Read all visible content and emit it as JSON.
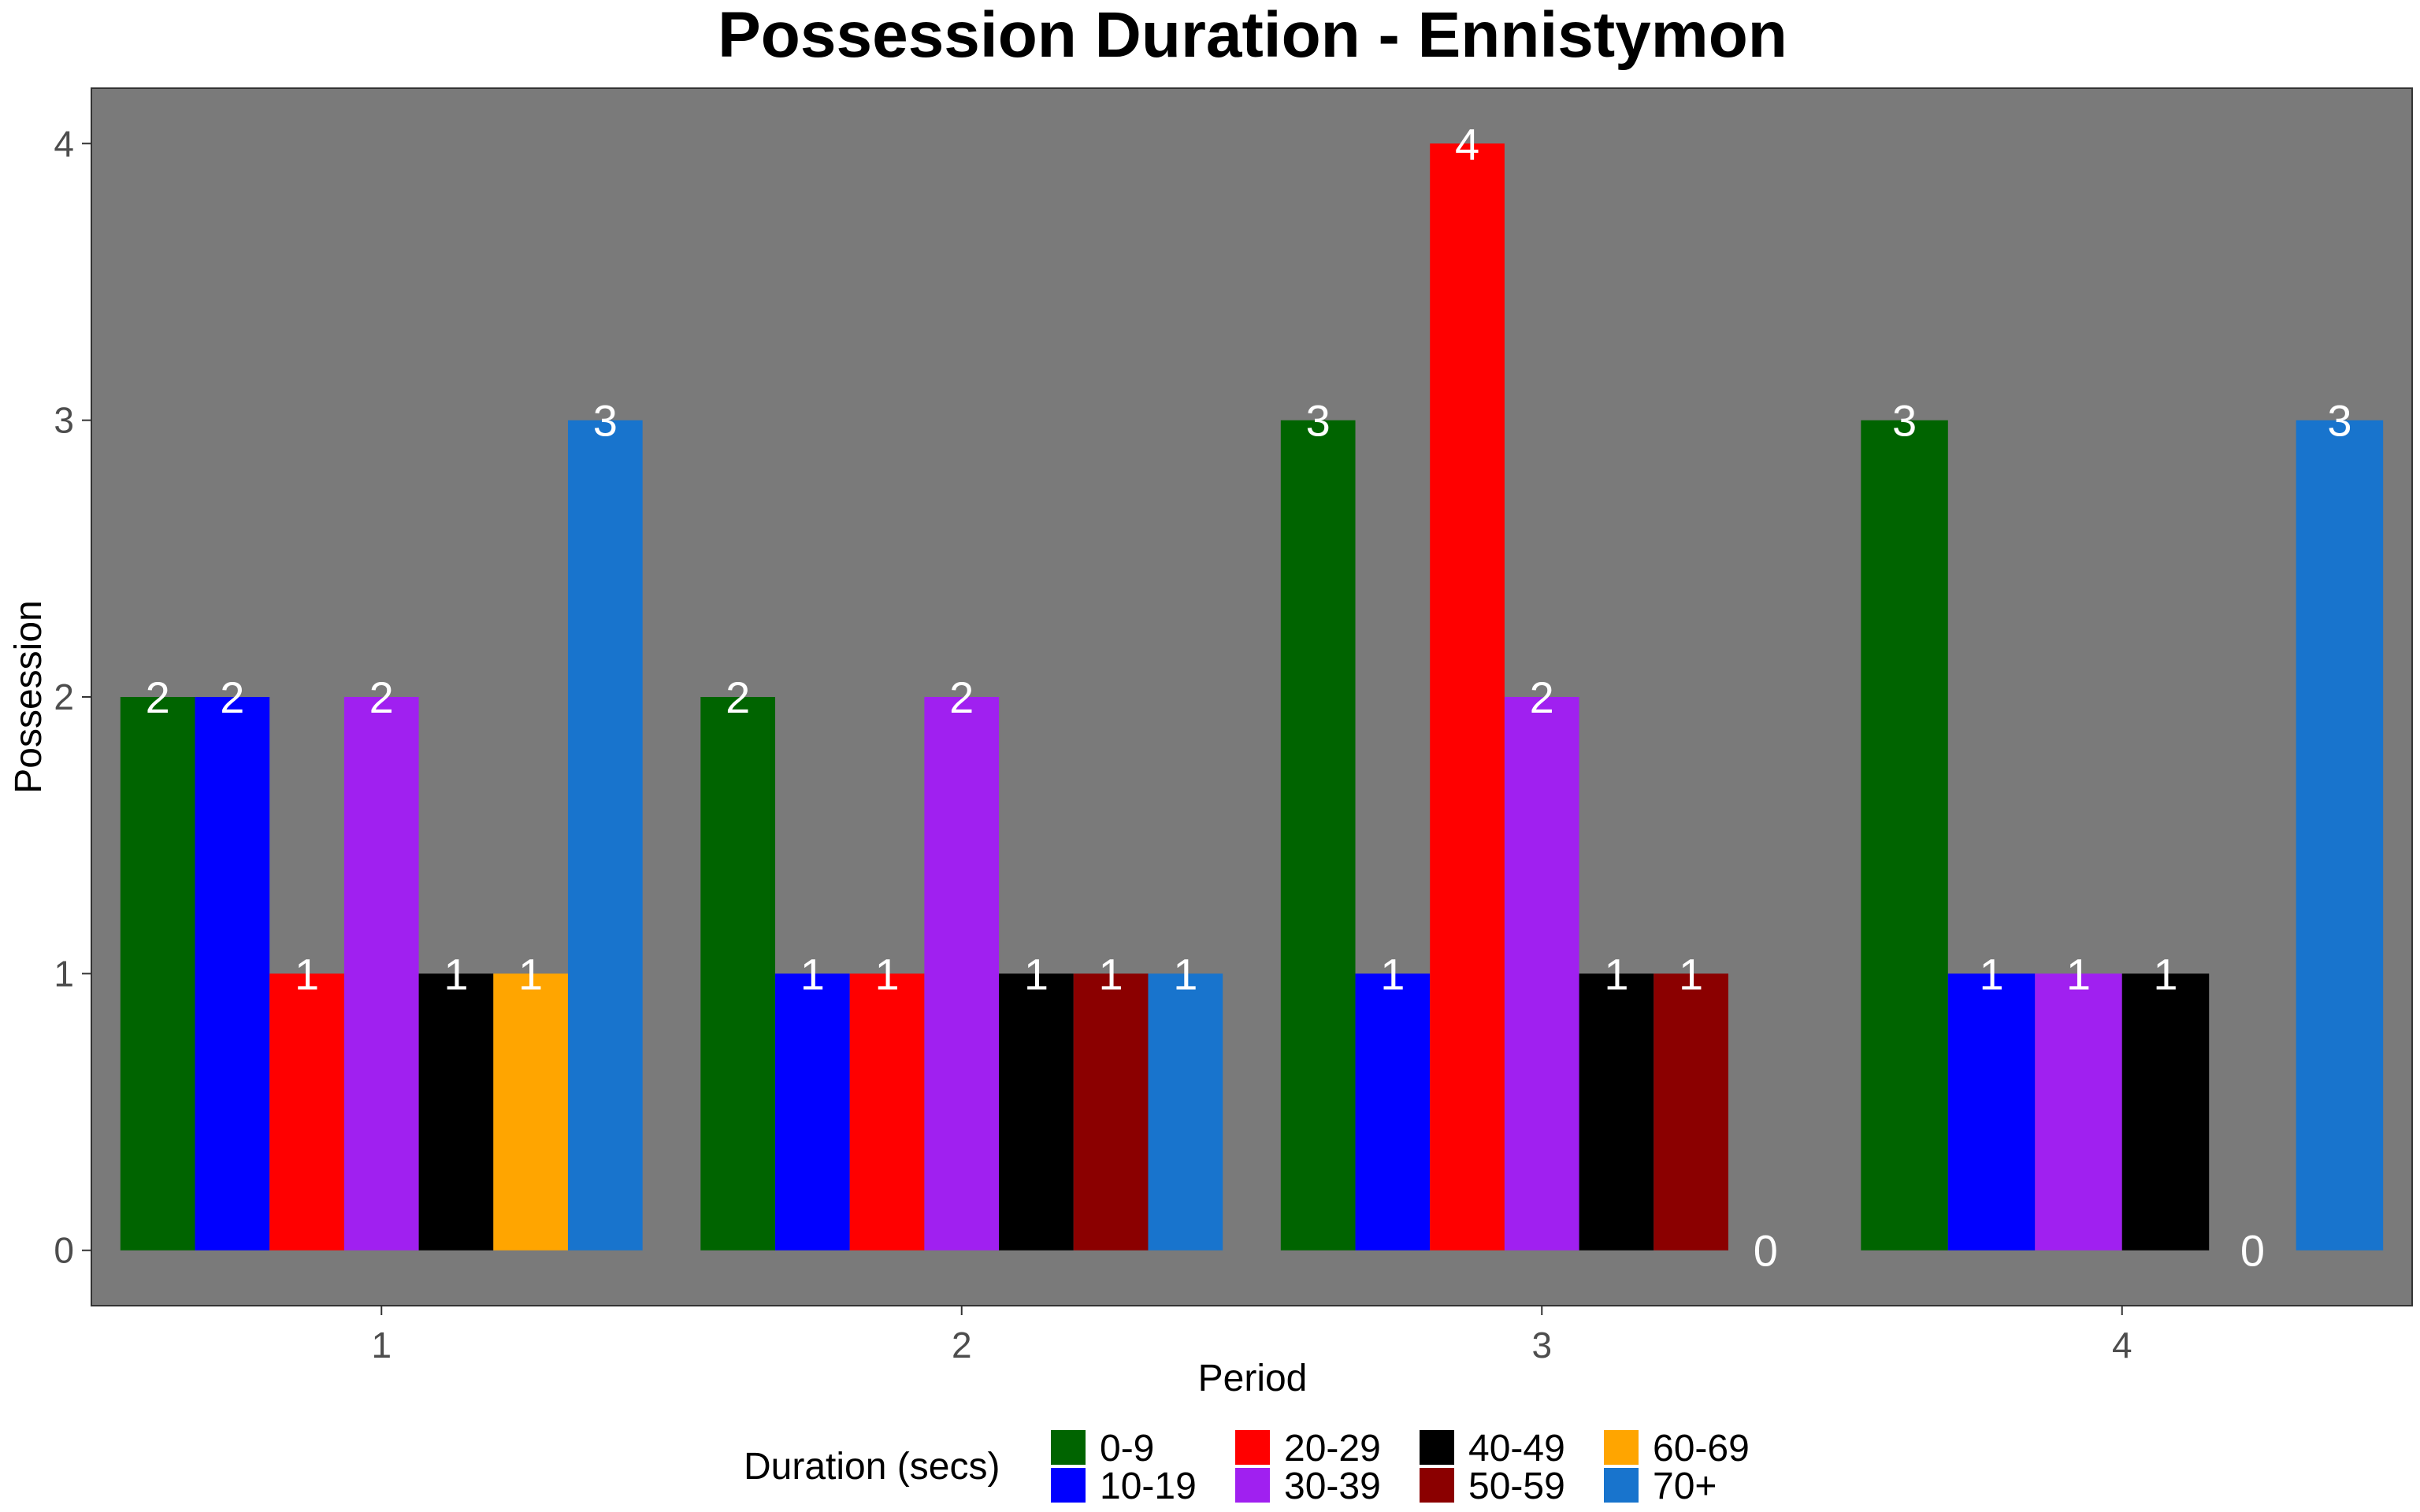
{
  "chart_data": {
    "type": "bar",
    "title": "Possession Duration - Ennistymon",
    "xlabel": "Period",
    "ylabel": "Possession",
    "categories": [
      "1",
      "2",
      "3",
      "4"
    ],
    "y_ticks": [
      "0",
      "1",
      "2",
      "3",
      "4"
    ],
    "ylim": [
      -0.2,
      4.2
    ],
    "grid": false,
    "panel_background": "#7a7a7a",
    "legend": {
      "title": "Duration (secs)",
      "position": "bottom",
      "entries": [
        "0-9",
        "10-19",
        "20-29",
        "30-39",
        "40-49",
        "50-59",
        "60-69",
        "70+"
      ]
    },
    "series": [
      {
        "name": "0-9",
        "color": "#006400",
        "values": [
          2,
          2,
          3,
          3
        ]
      },
      {
        "name": "10-19",
        "color": "#0000ff",
        "values": [
          2,
          1,
          1,
          1
        ]
      },
      {
        "name": "20-29",
        "color": "#ff0000",
        "values": [
          1,
          1,
          4,
          null
        ]
      },
      {
        "name": "30-39",
        "color": "#a020f0",
        "values": [
          2,
          2,
          2,
          1
        ]
      },
      {
        "name": "40-49",
        "color": "#000000",
        "values": [
          1,
          1,
          1,
          1
        ]
      },
      {
        "name": "50-59",
        "color": "#8b0000",
        "values": [
          null,
          1,
          1,
          null
        ]
      },
      {
        "name": "60-69",
        "color": "#ffa500",
        "values": [
          1,
          null,
          0,
          0
        ]
      },
      {
        "name": "70+",
        "color": "#1874cd",
        "values": [
          3,
          1,
          null,
          3
        ]
      }
    ]
  }
}
